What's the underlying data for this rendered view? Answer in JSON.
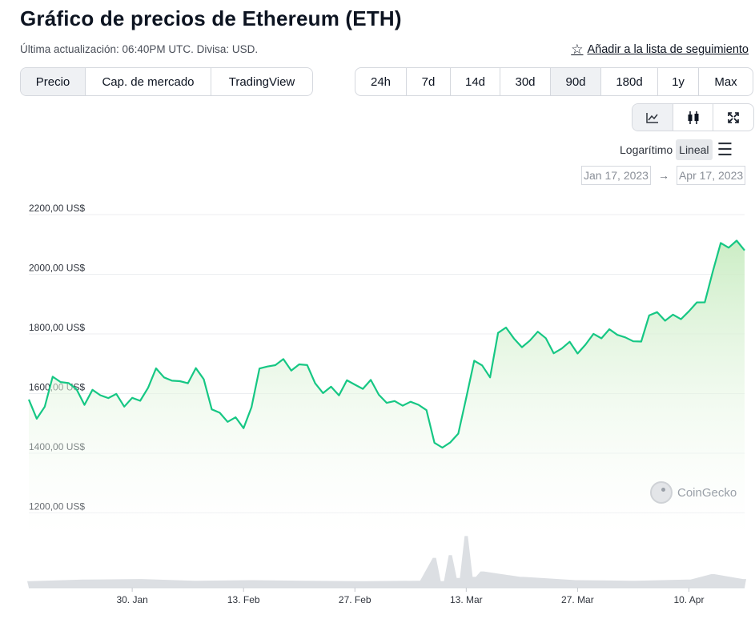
{
  "header": {
    "title": "Gráfico de precios de Ethereum (ETH)",
    "subtitle": "Última actualización: 06:40PM UTC. Divisa: USD.",
    "watchlist_label": "Añadir a la lista de seguimiento"
  },
  "tabs": [
    "Precio",
    "Cap. de mercado",
    "TradingView"
  ],
  "active_tab": "Precio",
  "ranges": [
    "24h",
    "7d",
    "14d",
    "30d",
    "90d",
    "180d",
    "1y",
    "Max"
  ],
  "active_range": "90d",
  "chart_types": [
    "line-chart-icon",
    "candlestick-icon",
    "expand-icon"
  ],
  "scale": {
    "log_label": "Logarítimo",
    "linear_label": "Lineal",
    "active": "Lineal"
  },
  "date_range": {
    "from": "Jan 17, 2023",
    "arrow": "→",
    "to": "Apr 17, 2023"
  },
  "brand": "CoinGecko",
  "colors": {
    "line": "#16c784",
    "area_top": "#c9ecc2",
    "volume": "#dcdfe3"
  },
  "chart_data": {
    "type": "area",
    "title": "Gráfico de precios de Ethereum (ETH)",
    "ylim": [
      1150,
      2250
    ],
    "yticks": [
      1200,
      1400,
      1600,
      1800,
      2000,
      2200
    ],
    "ytick_labels": [
      "1200,00 US$",
      "1400,00 US$",
      "1600,00 US$",
      "1800,00 US$",
      "2000,00 US$",
      "2200,00 US$"
    ],
    "xticks": [
      "2023-01-30",
      "2023-02-13",
      "2023-02-27",
      "2023-03-13",
      "2023-03-27",
      "2023-04-10"
    ],
    "xtick_labels": [
      "30. Jan",
      "13. Feb",
      "27. Feb",
      "13. Mar",
      "27. Mar",
      "10. Apr"
    ],
    "xlim": [
      "2023-01-17",
      "2023-04-17"
    ],
    "series": [
      {
        "type": "line",
        "x": [
          "2023-01-17",
          "2023-01-18",
          "2023-01-19",
          "2023-01-20",
          "2023-01-21",
          "2023-01-22",
          "2023-01-23",
          "2023-01-24",
          "2023-01-25",
          "2023-01-26",
          "2023-01-27",
          "2023-01-28",
          "2023-01-29",
          "2023-01-30",
          "2023-01-31",
          "2023-02-01",
          "2023-02-02",
          "2023-02-03",
          "2023-02-04",
          "2023-02-05",
          "2023-02-06",
          "2023-02-07",
          "2023-02-08",
          "2023-02-09",
          "2023-02-10",
          "2023-02-11",
          "2023-02-12",
          "2023-02-13",
          "2023-02-14",
          "2023-02-15",
          "2023-02-16",
          "2023-02-17",
          "2023-02-18",
          "2023-02-19",
          "2023-02-20",
          "2023-02-21",
          "2023-02-22",
          "2023-02-23",
          "2023-02-24",
          "2023-02-25",
          "2023-02-26",
          "2023-02-27",
          "2023-02-28",
          "2023-03-01",
          "2023-03-02",
          "2023-03-03",
          "2023-03-04",
          "2023-03-05",
          "2023-03-06",
          "2023-03-07",
          "2023-03-08",
          "2023-03-09",
          "2023-03-10",
          "2023-03-11",
          "2023-03-12",
          "2023-03-13",
          "2023-03-14",
          "2023-03-15",
          "2023-03-16",
          "2023-03-17",
          "2023-03-18",
          "2023-03-19",
          "2023-03-20",
          "2023-03-21",
          "2023-03-22",
          "2023-03-23",
          "2023-03-24",
          "2023-03-25",
          "2023-03-26",
          "2023-03-27",
          "2023-03-28",
          "2023-03-29",
          "2023-03-30",
          "2023-03-31",
          "2023-04-01",
          "2023-04-02",
          "2023-04-03",
          "2023-04-04",
          "2023-04-05",
          "2023-04-06",
          "2023-04-07",
          "2023-04-08",
          "2023-04-09",
          "2023-04-10",
          "2023-04-11",
          "2023-04-12",
          "2023-04-13",
          "2023-04-14",
          "2023-04-15",
          "2023-04-16",
          "2023-04-17"
        ],
        "y": [
          1580,
          1520,
          1550,
          1660,
          1640,
          1630,
          1620,
          1560,
          1610,
          1600,
          1580,
          1600,
          1560,
          1580,
          1580,
          1620,
          1680,
          1660,
          1640,
          1640,
          1640,
          1680,
          1650,
          1550,
          1530,
          1510,
          1520,
          1480,
          1560,
          1680,
          1690,
          1700,
          1710,
          1680,
          1700,
          1690,
          1640,
          1600,
          1620,
          1600,
          1640,
          1630,
          1620,
          1640,
          1600,
          1570,
          1570,
          1565,
          1570,
          1560,
          1550,
          1430,
          1420,
          1440,
          1460,
          1590,
          1710,
          1690,
          1660,
          1800,
          1820,
          1790,
          1750,
          1780,
          1810,
          1780,
          1740,
          1750,
          1770,
          1740,
          1760,
          1800,
          1790,
          1810,
          1800,
          1790,
          1770,
          1780,
          1860,
          1870,
          1850,
          1860,
          1850,
          1880,
          1900,
          1910,
          2010,
          2100,
          2095,
          2110,
          2080
        ]
      }
    ],
    "volume": {
      "x": [
        "2023-01-17",
        "2023-01-24",
        "2023-01-31",
        "2023-02-07",
        "2023-02-14",
        "2023-02-21",
        "2023-02-28",
        "2023-03-07",
        "2023-03-09",
        "2023-03-10",
        "2023-03-11",
        "2023-03-12",
        "2023-03-13",
        "2023-03-14",
        "2023-03-15",
        "2023-03-20",
        "2023-03-27",
        "2023-04-03",
        "2023-04-10",
        "2023-04-13",
        "2023-04-17"
      ],
      "relative": [
        0.12,
        0.15,
        0.16,
        0.13,
        0.14,
        0.13,
        0.12,
        0.13,
        0.55,
        0.12,
        0.6,
        0.18,
        0.95,
        0.2,
        0.3,
        0.2,
        0.14,
        0.13,
        0.15,
        0.25,
        0.16
      ]
    }
  }
}
